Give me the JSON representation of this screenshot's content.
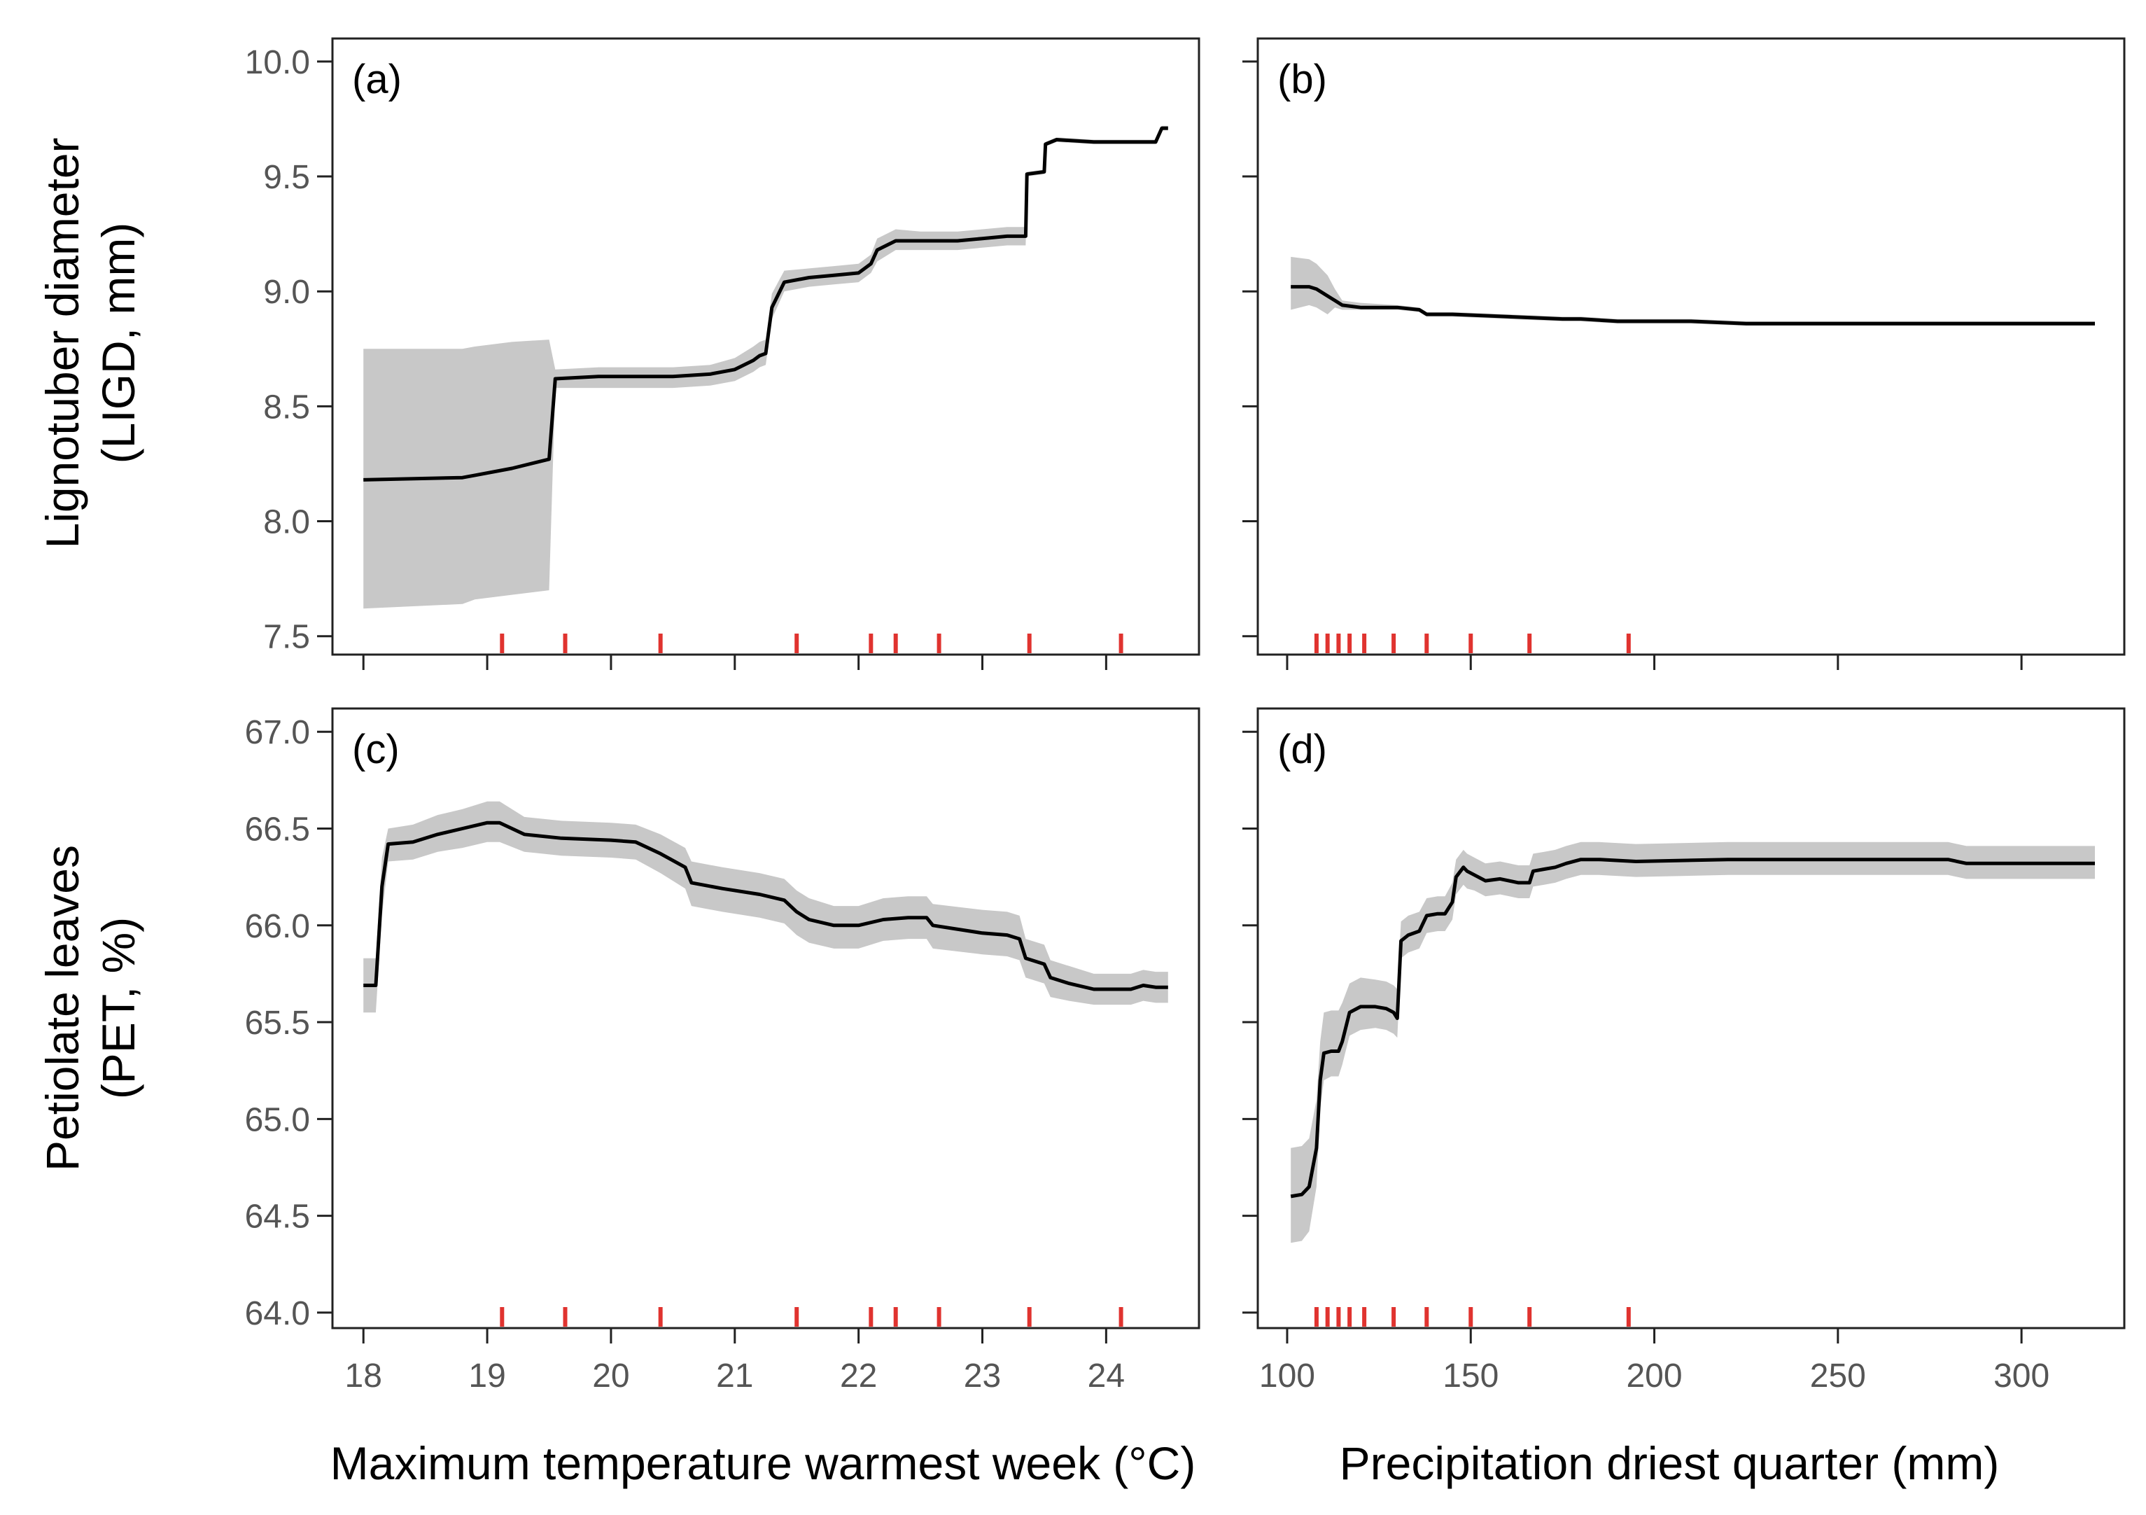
{
  "colors": {
    "line": "#000000",
    "band": "#c8c8c8",
    "rug": "#e0332f",
    "axis": "#222222",
    "tick_text": "#555555"
  },
  "chart_data": [
    {
      "panel": "a",
      "type": "line",
      "label": "(a)",
      "xlim": [
        17.75,
        24.75
      ],
      "ylim": [
        7.42,
        10.1
      ],
      "xticks": [
        18,
        19,
        20,
        21,
        22,
        23,
        24
      ],
      "yticks": [
        7.5,
        8.0,
        8.5,
        9.0,
        9.5,
        10.0
      ],
      "ytick_labels": [
        "7.5",
        "8.0",
        "8.5",
        "9.0",
        "9.5",
        "10.0"
      ],
      "show_xtick_labels": false,
      "show_ytick_labels": true,
      "series": [
        {
          "name": "LIGD",
          "x": [
            18.0,
            18.8,
            18.9,
            19.2,
            19.5,
            19.55,
            19.9,
            20.5,
            20.8,
            21.0,
            21.15,
            21.2,
            21.25,
            21.3,
            21.4,
            21.6,
            21.8,
            22.0,
            22.1,
            22.15,
            22.3,
            22.5,
            22.8,
            23.0,
            23.2,
            23.35,
            23.36,
            23.5,
            23.51,
            23.6,
            23.9,
            24.2,
            24.3,
            24.4,
            24.45,
            24.5
          ],
          "y": [
            8.18,
            8.19,
            8.2,
            8.23,
            8.27,
            8.62,
            8.63,
            8.63,
            8.64,
            8.66,
            8.7,
            8.72,
            8.73,
            8.93,
            9.04,
            9.06,
            9.07,
            9.08,
            9.12,
            9.18,
            9.22,
            9.22,
            9.22,
            9.23,
            9.24,
            9.24,
            9.51,
            9.52,
            9.64,
            9.66,
            9.65,
            9.65,
            9.65,
            9.65,
            9.71,
            9.71
          ],
          "lower": [
            7.62,
            7.64,
            7.66,
            7.68,
            7.7,
            8.58,
            8.58,
            8.58,
            8.59,
            8.61,
            8.65,
            8.67,
            8.68,
            8.88,
            9.0,
            9.02,
            9.03,
            9.04,
            9.08,
            9.13,
            9.18,
            9.18,
            9.18,
            9.19,
            9.2,
            9.2,
            9.5,
            9.51,
            9.63,
            9.65,
            9.64,
            9.64,
            9.64,
            9.64,
            9.7,
            9.7
          ],
          "upper": [
            8.75,
            8.75,
            8.76,
            8.78,
            8.79,
            8.66,
            8.67,
            8.67,
            8.68,
            8.71,
            8.76,
            8.78,
            8.79,
            8.99,
            9.09,
            9.1,
            9.11,
            9.12,
            9.16,
            9.23,
            9.27,
            9.26,
            9.26,
            9.27,
            9.28,
            9.28,
            9.52,
            9.53,
            9.65,
            9.67,
            9.66,
            9.66,
            9.66,
            9.66,
            9.72,
            9.72
          ]
        }
      ],
      "rug": [
        19.12,
        19.63,
        20.4,
        21.5,
        22.1,
        22.3,
        22.65,
        23.38,
        24.12
      ]
    },
    {
      "panel": "b",
      "type": "line",
      "label": "(b)",
      "xlim": [
        92,
        328
      ],
      "ylim": [
        7.42,
        10.1
      ],
      "xticks": [
        100,
        150,
        200,
        250,
        300
      ],
      "yticks": [
        7.5,
        8.0,
        8.5,
        9.0,
        9.5,
        10.0
      ],
      "show_xtick_labels": false,
      "show_ytick_labels": false,
      "series": [
        {
          "name": "LIGD",
          "x": [
            101,
            106,
            108,
            111,
            113,
            115,
            120,
            130,
            136,
            138,
            145,
            160,
            175,
            180,
            190,
            210,
            225,
            240,
            300,
            320
          ],
          "y": [
            9.02,
            9.02,
            9.01,
            8.98,
            8.96,
            8.94,
            8.93,
            8.93,
            8.92,
            8.9,
            8.9,
            8.89,
            8.88,
            8.88,
            8.87,
            8.87,
            8.86,
            8.86,
            8.86,
            8.86
          ],
          "lower": [
            8.92,
            8.94,
            8.93,
            8.9,
            8.93,
            8.92,
            8.92,
            8.92,
            8.91,
            8.89,
            8.89,
            8.88,
            8.87,
            8.87,
            8.86,
            8.86,
            8.85,
            8.85,
            8.85,
            8.85
          ],
          "upper": [
            9.15,
            9.14,
            9.12,
            9.07,
            9.01,
            8.96,
            8.95,
            8.94,
            8.93,
            8.91,
            8.91,
            8.9,
            8.89,
            8.89,
            8.88,
            8.88,
            8.87,
            8.87,
            8.87,
            8.87
          ]
        }
      ],
      "rug": [
        108,
        111,
        114,
        117,
        121,
        129,
        138,
        150,
        166,
        193
      ]
    },
    {
      "panel": "c",
      "type": "line",
      "label": "(c)",
      "xlim": [
        17.75,
        24.75
      ],
      "ylim": [
        63.92,
        67.12
      ],
      "xticks": [
        18,
        19,
        20,
        21,
        22,
        23,
        24
      ],
      "xtick_labels": [
        "18",
        "19",
        "20",
        "21",
        "22",
        "23",
        "24"
      ],
      "yticks": [
        64.0,
        64.5,
        65.0,
        65.5,
        66.0,
        66.5,
        67.0
      ],
      "ytick_labels": [
        "64.0",
        "64.5",
        "65.0",
        "65.5",
        "66.0",
        "66.5",
        "67.0"
      ],
      "show_xtick_labels": true,
      "show_ytick_labels": true,
      "series": [
        {
          "name": "PET",
          "x": [
            18.0,
            18.1,
            18.15,
            18.2,
            18.4,
            18.6,
            18.8,
            19.0,
            19.1,
            19.3,
            19.6,
            20.0,
            20.2,
            20.4,
            20.6,
            20.65,
            20.9,
            21.2,
            21.4,
            21.5,
            21.6,
            21.8,
            22.0,
            22.2,
            22.4,
            22.55,
            22.6,
            23.0,
            23.2,
            23.3,
            23.35,
            23.5,
            23.55,
            23.7,
            23.9,
            24.2,
            24.3,
            24.4,
            24.5
          ],
          "y": [
            65.69,
            65.69,
            66.2,
            66.42,
            66.43,
            66.47,
            66.5,
            66.53,
            66.53,
            66.47,
            66.45,
            66.44,
            66.43,
            66.37,
            66.3,
            66.22,
            66.19,
            66.16,
            66.13,
            66.07,
            66.03,
            66.0,
            66.0,
            66.03,
            66.04,
            66.04,
            66.0,
            65.96,
            65.95,
            65.93,
            65.83,
            65.8,
            65.73,
            65.7,
            65.67,
            65.67,
            65.69,
            65.68,
            65.68
          ],
          "lower": [
            65.55,
            65.55,
            66.05,
            66.33,
            66.34,
            66.38,
            66.4,
            66.43,
            66.43,
            66.38,
            66.36,
            66.35,
            66.34,
            66.27,
            66.19,
            66.1,
            66.07,
            66.04,
            66.01,
            65.95,
            65.91,
            65.88,
            65.88,
            65.92,
            65.93,
            65.93,
            65.88,
            65.85,
            65.84,
            65.82,
            65.73,
            65.7,
            65.63,
            65.61,
            65.59,
            65.59,
            65.61,
            65.6,
            65.6
          ],
          "upper": [
            65.83,
            65.83,
            66.35,
            66.5,
            66.52,
            66.57,
            66.6,
            66.64,
            66.64,
            66.56,
            66.54,
            66.53,
            66.52,
            66.47,
            66.4,
            66.33,
            66.3,
            66.27,
            66.24,
            66.18,
            66.14,
            66.1,
            66.1,
            66.14,
            66.15,
            66.15,
            66.11,
            66.08,
            66.07,
            66.05,
            65.93,
            65.9,
            65.82,
            65.79,
            65.75,
            65.75,
            65.77,
            65.76,
            65.76
          ]
        }
      ],
      "rug": [
        19.12,
        19.63,
        20.4,
        21.5,
        22.1,
        22.3,
        22.65,
        23.38,
        24.12
      ]
    },
    {
      "panel": "d",
      "type": "line",
      "label": "(d)",
      "xlim": [
        92,
        328
      ],
      "ylim": [
        63.92,
        67.12
      ],
      "xticks": [
        100,
        150,
        200,
        250,
        300
      ],
      "xtick_labels": [
        "100",
        "150",
        "200",
        "250",
        "300"
      ],
      "yticks": [
        64.0,
        64.5,
        65.0,
        65.5,
        66.0,
        66.5,
        67.0
      ],
      "show_xtick_labels": true,
      "show_ytick_labels": false,
      "series": [
        {
          "name": "PET",
          "x": [
            101,
            104,
            106,
            108,
            109,
            110,
            112,
            114,
            115,
            117,
            120,
            124,
            127,
            129,
            130,
            131,
            133,
            136,
            138,
            141,
            143,
            145,
            146,
            148,
            149,
            151,
            154,
            158,
            163,
            166,
            167,
            170,
            173,
            176,
            180,
            185,
            195,
            220,
            250,
            280,
            285,
            320
          ],
          "y": [
            64.6,
            64.61,
            64.65,
            64.85,
            65.2,
            65.34,
            65.35,
            65.35,
            65.4,
            65.55,
            65.58,
            65.58,
            65.57,
            65.55,
            65.52,
            65.92,
            65.95,
            65.97,
            66.05,
            66.06,
            66.06,
            66.12,
            66.25,
            66.3,
            66.28,
            66.26,
            66.23,
            66.24,
            66.22,
            66.22,
            66.28,
            66.29,
            66.3,
            66.32,
            66.34,
            66.34,
            66.33,
            66.34,
            66.34,
            66.34,
            66.32,
            66.32
          ],
          "lower": [
            64.36,
            64.37,
            64.42,
            64.65,
            65.05,
            65.2,
            65.22,
            65.22,
            65.28,
            65.43,
            65.46,
            65.47,
            65.46,
            65.44,
            65.42,
            65.83,
            65.86,
            65.88,
            65.96,
            65.97,
            65.97,
            66.03,
            66.16,
            66.21,
            66.19,
            66.18,
            66.15,
            66.16,
            66.14,
            66.14,
            66.2,
            66.21,
            66.22,
            66.24,
            66.26,
            66.26,
            66.25,
            66.26,
            66.26,
            66.26,
            66.24,
            66.24
          ],
          "upper": [
            64.85,
            64.86,
            64.9,
            65.1,
            65.4,
            65.55,
            65.56,
            65.56,
            65.6,
            65.7,
            65.73,
            65.72,
            65.71,
            65.69,
            65.67,
            66.02,
            66.05,
            66.07,
            66.14,
            66.15,
            66.15,
            66.22,
            66.34,
            66.39,
            66.37,
            66.35,
            66.32,
            66.33,
            66.31,
            66.31,
            66.37,
            66.38,
            66.39,
            66.41,
            66.43,
            66.43,
            66.42,
            66.43,
            66.43,
            66.43,
            66.41,
            66.41
          ]
        }
      ],
      "rug": [
        108,
        111,
        114,
        117,
        121,
        129,
        138,
        150,
        166,
        193
      ]
    }
  ],
  "axis_titles": {
    "ylabel_top_line1": "Lignotuber diameter",
    "ylabel_top_line2": "(LIGD, mm)",
    "ylabel_bottom_line1": "Petiolate leaves",
    "ylabel_bottom_line2": "(PET, %)",
    "xlabel_left": "Maximum temperature warmest week (°C)",
    "xlabel_right": "Precipitation driest quarter (mm)"
  }
}
